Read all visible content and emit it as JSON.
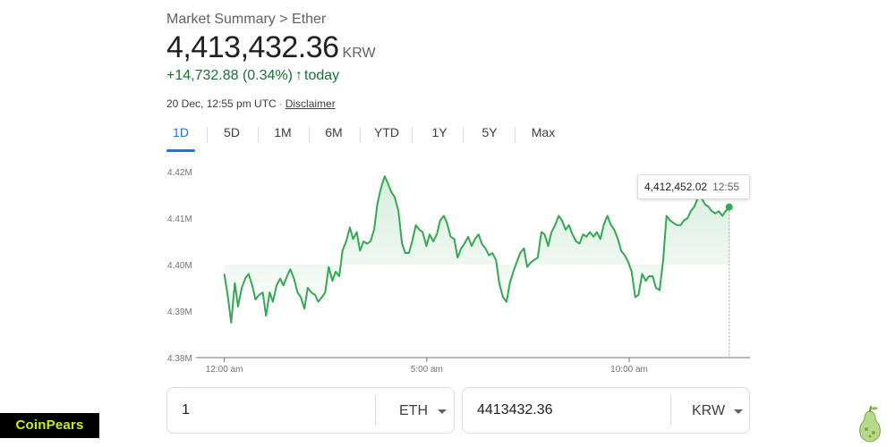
{
  "header": {
    "breadcrumb": "Market Summary > Ether",
    "price": "4,413,432.36",
    "currency": "KRW",
    "change": "+14,732.88 (0.34%)",
    "change_suffix": "today",
    "timestamp": "20 Dec, 12:55 pm UTC",
    "separator": "·",
    "disclaimer": "Disclaimer"
  },
  "tabs": [
    {
      "label": "1D",
      "active": true
    },
    {
      "label": "5D",
      "active": false
    },
    {
      "label": "1M",
      "active": false
    },
    {
      "label": "6M",
      "active": false
    },
    {
      "label": "YTD",
      "active": false
    },
    {
      "label": "1Y",
      "active": false
    },
    {
      "label": "5Y",
      "active": false
    },
    {
      "label": "Max",
      "active": false
    }
  ],
  "tooltip": {
    "value": "4,412,452.02",
    "time": "12:55"
  },
  "converter": {
    "from_value": "1",
    "from_unit": "ETH",
    "to_value": "4413432.36",
    "to_unit": "KRW"
  },
  "branding": {
    "logo_text": "CoinPears"
  },
  "colors": {
    "line": "#34a853",
    "up": "#137333",
    "accent": "#1a73e8"
  },
  "icons": {
    "up_arrow": "arrow-up-icon",
    "dropdown": "chevron-down-icon",
    "brand_mark": "pear-icon"
  },
  "chart_data": {
    "type": "area",
    "ylim": [
      4.38,
      4.42
    ],
    "y_ticks": [
      "4.42M",
      "4.41M",
      "4.40M",
      "4.39M",
      "4.38M"
    ],
    "y_tick_values": [
      4.42,
      4.41,
      4.4,
      4.39,
      4.38
    ],
    "x_ticks": [
      "12:00 am",
      "5:00 am",
      "10:00 am"
    ],
    "x_tick_hours": [
      0,
      5,
      10
    ],
    "xlim_hours": [
      -0.5,
      12.917
    ],
    "series": [
      {
        "x": [
          0.0,
          0.09,
          0.17,
          0.26,
          0.34,
          0.43,
          0.52,
          0.6,
          0.69,
          0.77,
          0.86,
          0.95,
          1.03,
          1.12,
          1.2,
          1.29,
          1.38,
          1.46,
          1.55,
          1.63,
          1.72,
          1.81,
          1.89,
          1.98,
          2.06,
          2.15,
          2.24,
          2.32,
          2.41,
          2.49,
          2.58,
          2.67,
          2.75,
          2.84,
          2.92,
          3.01,
          3.1,
          3.18,
          3.27,
          3.35,
          3.44,
          3.53,
          3.61,
          3.7,
          3.78,
          3.87,
          3.96,
          4.04,
          4.13,
          4.21,
          4.3,
          4.39,
          4.47,
          4.56,
          4.64,
          4.73,
          4.82,
          4.9,
          4.99,
          5.07,
          5.16,
          5.25,
          5.33,
          5.42,
          5.5,
          5.59,
          5.68,
          5.76,
          5.85,
          5.93,
          6.02,
          6.11,
          6.19,
          6.28,
          6.36,
          6.45,
          6.54,
          6.62,
          6.71,
          6.79,
          6.88,
          6.97,
          7.05,
          7.14,
          7.22,
          7.31,
          7.4,
          7.48,
          7.57,
          7.65,
          7.74,
          7.83,
          7.91,
          8.0,
          8.08,
          8.17,
          8.26,
          8.34,
          8.43,
          8.51,
          8.6,
          8.69,
          8.77,
          8.86,
          8.94,
          9.03,
          9.12,
          9.2,
          9.29,
          9.37,
          9.46,
          9.55,
          9.63,
          9.72,
          9.8,
          9.89,
          9.98,
          10.06,
          10.15,
          10.23,
          10.32,
          10.41,
          10.49,
          10.58,
          10.66,
          10.75,
          10.84,
          10.92,
          11.01,
          11.09,
          11.18,
          11.27,
          11.35,
          11.44,
          11.52,
          11.61,
          11.7,
          11.78,
          11.87,
          11.95,
          12.04,
          12.13,
          12.21,
          12.3,
          12.38,
          12.47
        ],
        "y": [
          4.398,
          4.393,
          4.3875,
          4.396,
          4.391,
          4.395,
          4.397,
          4.398,
          4.3955,
          4.3925,
          4.3935,
          4.394,
          4.389,
          4.394,
          4.392,
          4.3955,
          4.397,
          4.3955,
          4.3975,
          4.399,
          4.397,
          4.394,
          4.393,
          4.3905,
          4.395,
          4.394,
          4.3935,
          4.392,
          4.393,
          4.394,
          4.3995,
          4.3965,
          4.3985,
          4.3975,
          4.403,
          4.405,
          4.408,
          4.4055,
          4.407,
          4.403,
          4.405,
          4.4045,
          4.405,
          4.4075,
          4.413,
          4.4165,
          4.419,
          4.4175,
          4.4155,
          4.4145,
          4.4115,
          4.4045,
          4.4025,
          4.4025,
          4.405,
          4.4085,
          4.4075,
          4.407,
          4.404,
          4.4065,
          4.405,
          4.4065,
          4.4095,
          4.4105,
          4.409,
          4.406,
          4.4055,
          4.4015,
          4.4035,
          4.4045,
          4.406,
          4.404,
          4.4055,
          4.4065,
          4.4045,
          4.4035,
          4.402,
          4.4025,
          4.401,
          4.396,
          4.393,
          4.392,
          4.396,
          4.3985,
          4.4005,
          4.4025,
          4.4035,
          4.3995,
          4.4005,
          4.401,
          4.4015,
          4.407,
          4.4065,
          4.404,
          4.407,
          4.4085,
          4.4105,
          4.4095,
          4.4075,
          4.4085,
          4.4065,
          4.405,
          4.4045,
          4.4065,
          4.406,
          4.407,
          4.406,
          4.407,
          4.4055,
          4.4085,
          4.4105,
          4.4085,
          4.4075,
          4.4055,
          4.403,
          4.402,
          4.4005,
          4.3985,
          4.393,
          4.3935,
          4.398,
          4.3965,
          4.3975,
          4.3975,
          4.395,
          4.3945,
          4.401,
          4.4105,
          4.4095,
          4.409,
          4.4085,
          4.4085,
          4.4095,
          4.41,
          4.4115,
          4.4125,
          4.4145,
          4.4145,
          4.413,
          4.4125,
          4.4115,
          4.411,
          4.4115,
          4.4105,
          4.4115,
          4.4124
        ]
      }
    ]
  }
}
